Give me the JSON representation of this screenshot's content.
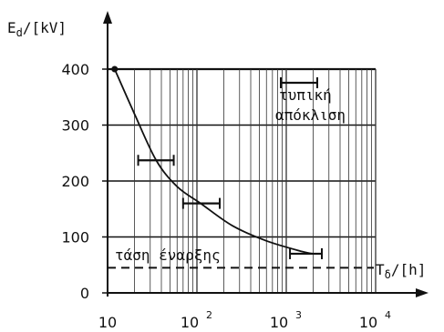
{
  "chart_data": {
    "type": "line",
    "x_scale": "log",
    "xlim": [
      10,
      10000
    ],
    "ylim": [
      0,
      420
    ],
    "ylabel": "Ed/[kV]",
    "ylabel_main": "E",
    "ylabel_sub": "d",
    "ylabel_rest": "/[kV]",
    "xlabel": "Tδ/[h]",
    "xlabel_main": "T",
    "xlabel_sub": "δ",
    "xlabel_rest": "/[h]",
    "y_ticks": [
      {
        "value": 0,
        "label": "0"
      },
      {
        "value": 100,
        "label": "100"
      },
      {
        "value": 200,
        "label": "200"
      },
      {
        "value": 300,
        "label": "300"
      },
      {
        "value": 400,
        "label": "400"
      }
    ],
    "x_ticks": [
      {
        "value": 10,
        "label": "10",
        "sup": ""
      },
      {
        "value": 100,
        "label": "10",
        "sup": "2"
      },
      {
        "value": 1000,
        "label": "10",
        "sup": "3"
      },
      {
        "value": 10000,
        "label": "10",
        "sup": "4"
      }
    ],
    "grid": true,
    "series": [
      {
        "values": [
          {
            "x": 12,
            "y": 400
          },
          {
            "x": 20,
            "y": 320
          },
          {
            "x": 35,
            "y": 237
          },
          {
            "x": 60,
            "y": 190
          },
          {
            "x": 110,
            "y": 160
          },
          {
            "x": 250,
            "y": 120
          },
          {
            "x": 600,
            "y": 93
          },
          {
            "x": 1500,
            "y": 74
          },
          {
            "x": 2000,
            "y": 70
          }
        ]
      }
    ],
    "error_bars": [
      {
        "x": 35,
        "y": 237,
        "xmin": 22,
        "xmax": 55
      },
      {
        "x": 110,
        "y": 160,
        "xmin": 70,
        "xmax": 180
      },
      {
        "x": 2000,
        "y": 70,
        "xmin": 1100,
        "xmax": 2500
      }
    ],
    "inception_voltage": {
      "y": 45,
      "label": "τάση έναρξης"
    },
    "legend": {
      "line1": "τυπική",
      "line2": "απόκλιση",
      "position": "top-right"
    }
  }
}
